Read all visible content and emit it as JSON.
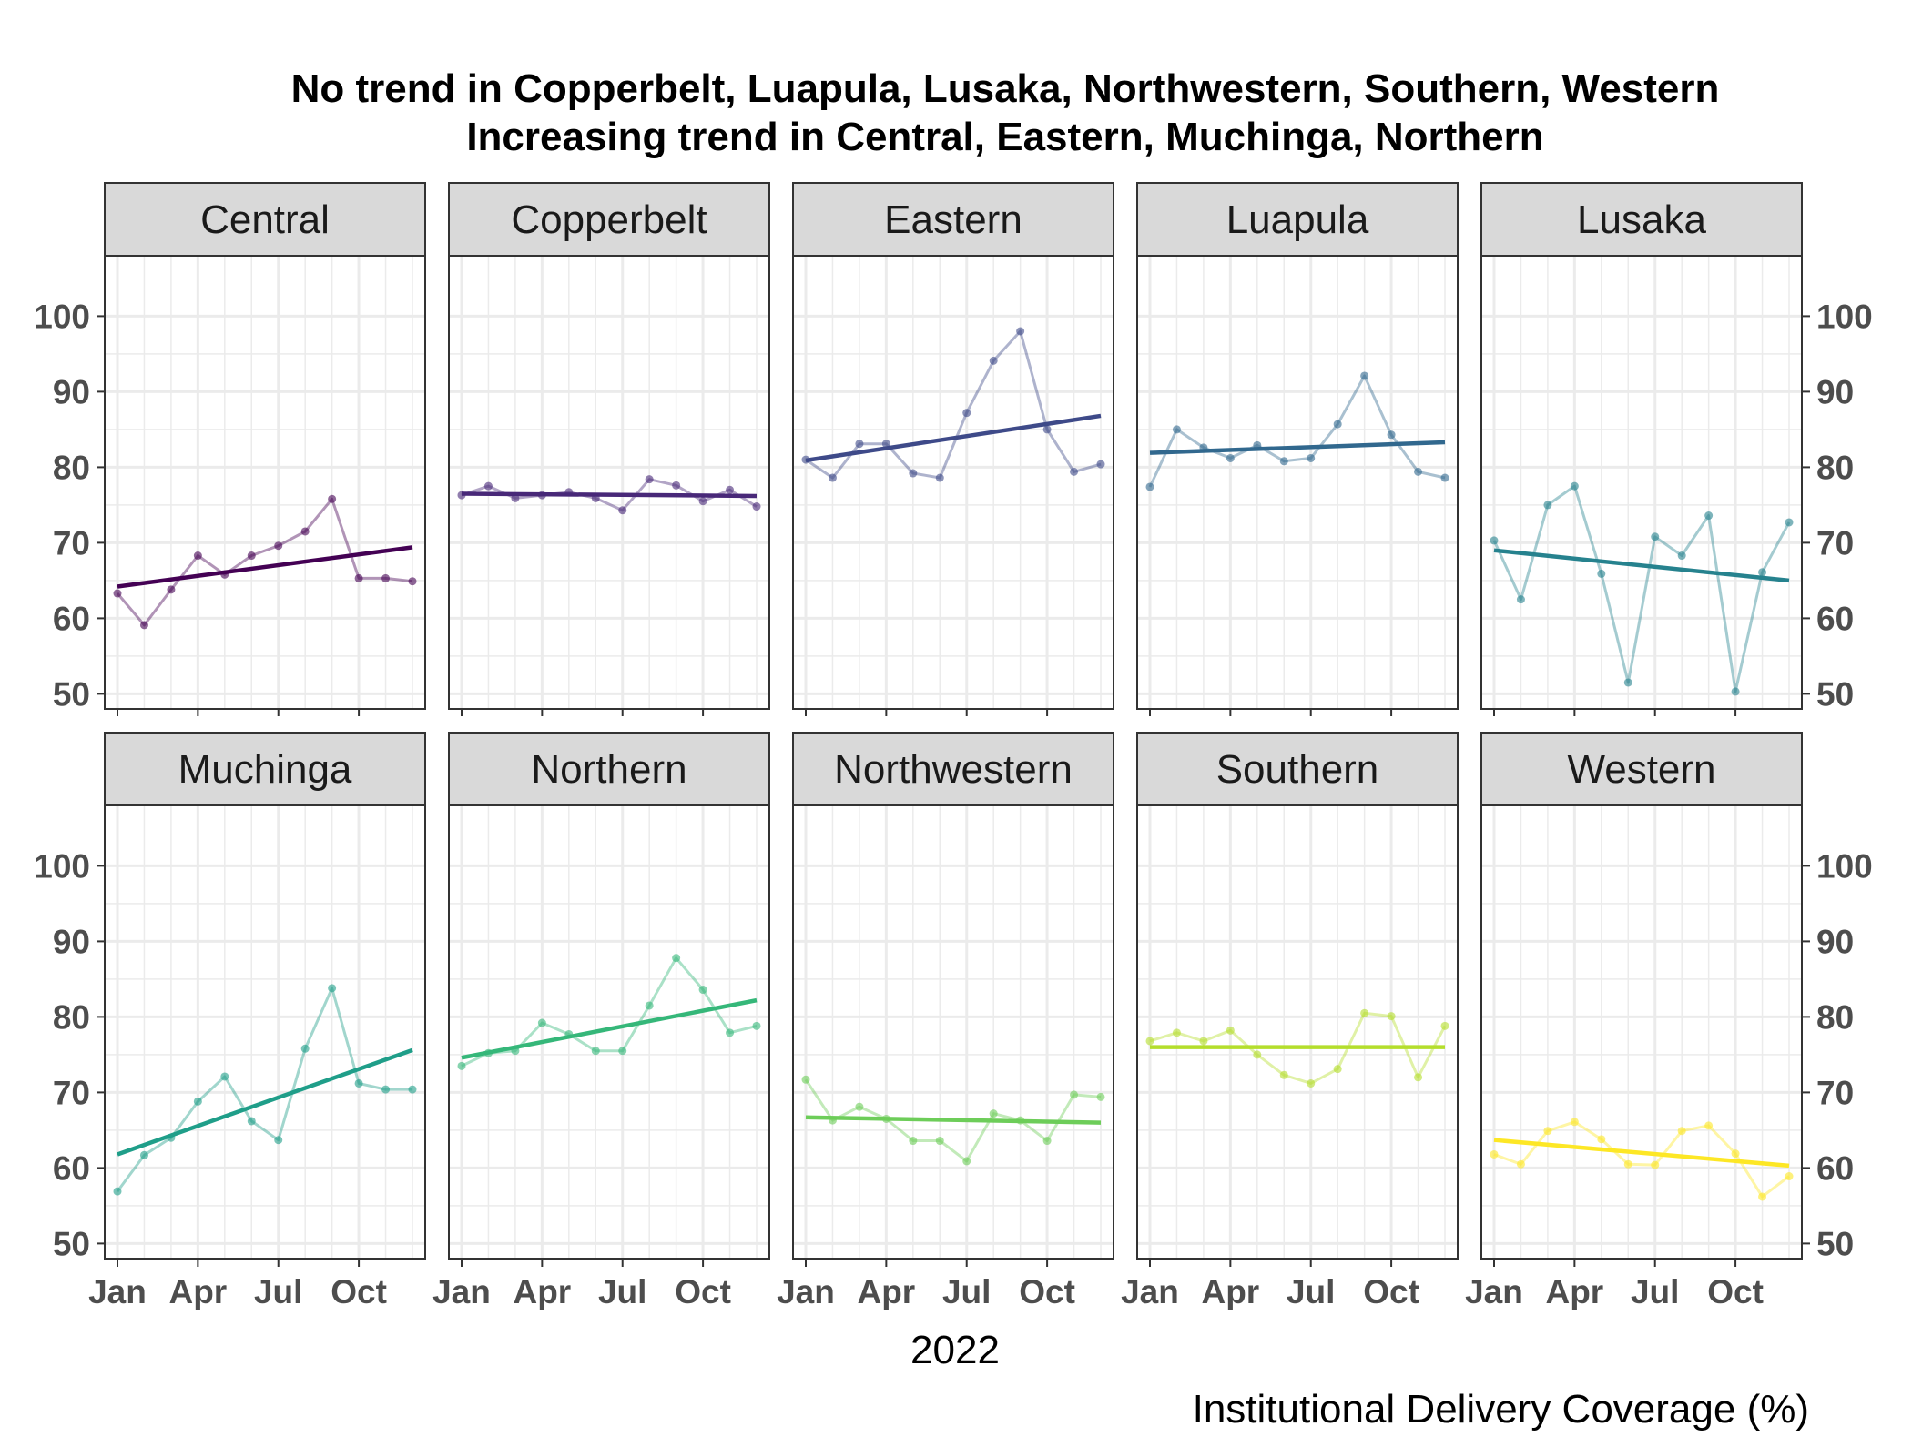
{
  "chart_data": {
    "type": "line",
    "title_lines": [
      "No trend in Copperbelt, Luapula, Lusaka, Northwestern, Southern, Western",
      "Increasing trend in Central, Eastern, Muchinga, Northern"
    ],
    "xlabel": "2022",
    "caption": "Institutional Delivery Coverage (%)",
    "x_ticks": [
      "Jan",
      "Apr",
      "Jul",
      "Oct"
    ],
    "x_months": [
      "Jan",
      "Feb",
      "Mar",
      "Apr",
      "May",
      "Jun",
      "Jul",
      "Aug",
      "Sep",
      "Oct",
      "Nov",
      "Dec"
    ],
    "y_ticks": [
      "50",
      "60",
      "70",
      "80",
      "90",
      "100"
    ],
    "ylim": [
      48,
      108
    ],
    "grid": true,
    "facets": [
      {
        "name": "Central",
        "color": "#440154",
        "values": [
          63.3,
          59.1,
          63.8,
          68.3,
          65.8,
          68.3,
          69.6,
          71.5,
          75.8,
          65.3,
          65.3,
          64.9
        ],
        "trend": [
          64.2,
          69.4
        ]
      },
      {
        "name": "Copperbelt",
        "color": "#482878",
        "values": [
          76.3,
          77.5,
          75.9,
          76.3,
          76.7,
          75.9,
          74.3,
          78.4,
          77.6,
          75.5,
          77.0,
          74.8
        ],
        "trend": [
          76.5,
          76.2
        ]
      },
      {
        "name": "Eastern",
        "color": "#3E4A89",
        "values": [
          81.0,
          78.6,
          83.1,
          83.1,
          79.2,
          78.6,
          87.2,
          94.1,
          98.0,
          85.0,
          79.4,
          80.4
        ],
        "trend": [
          80.9,
          86.8
        ]
      },
      {
        "name": "Luapula",
        "color": "#31688E",
        "values": [
          77.4,
          85.0,
          82.6,
          81.2,
          82.9,
          80.8,
          81.2,
          85.7,
          92.1,
          84.3,
          79.4,
          78.6
        ],
        "trend": [
          81.9,
          83.3
        ]
      },
      {
        "name": "Lusaka",
        "color": "#26828E",
        "values": [
          70.3,
          62.5,
          75.0,
          77.5,
          65.9,
          51.5,
          70.8,
          68.3,
          73.6,
          50.3,
          66.1,
          72.7
        ],
        "trend": [
          69.0,
          65.0
        ]
      },
      {
        "name": "Muchinga",
        "color": "#1F9E89",
        "values": [
          56.9,
          61.7,
          64.0,
          68.8,
          72.1,
          66.2,
          63.7,
          75.8,
          83.8,
          71.2,
          70.4,
          70.4
        ],
        "trend": [
          61.8,
          75.6
        ]
      },
      {
        "name": "Northern",
        "color": "#35B779",
        "values": [
          73.5,
          75.2,
          75.5,
          79.2,
          77.7,
          75.5,
          75.5,
          81.5,
          87.8,
          83.6,
          77.9,
          78.8
        ],
        "trend": [
          74.6,
          82.2
        ]
      },
      {
        "name": "Northwestern",
        "color": "#6DCD59",
        "values": [
          71.7,
          66.3,
          68.1,
          66.5,
          63.6,
          63.6,
          60.9,
          67.2,
          66.3,
          63.6,
          69.7,
          69.4
        ],
        "trend": [
          66.7,
          66.0
        ]
      },
      {
        "name": "Southern",
        "color": "#B4DE2C",
        "values": [
          76.8,
          77.9,
          76.8,
          78.2,
          75.0,
          72.3,
          71.2,
          73.1,
          80.5,
          80.1,
          72.0,
          78.8
        ],
        "trend": [
          76.0,
          76.0
        ]
      },
      {
        "name": "Western",
        "color": "#FDE725",
        "values": [
          61.8,
          60.5,
          64.9,
          66.1,
          63.8,
          60.5,
          60.4,
          64.9,
          65.6,
          61.9,
          56.2,
          58.9
        ],
        "trend": [
          63.7,
          60.3
        ]
      }
    ]
  }
}
